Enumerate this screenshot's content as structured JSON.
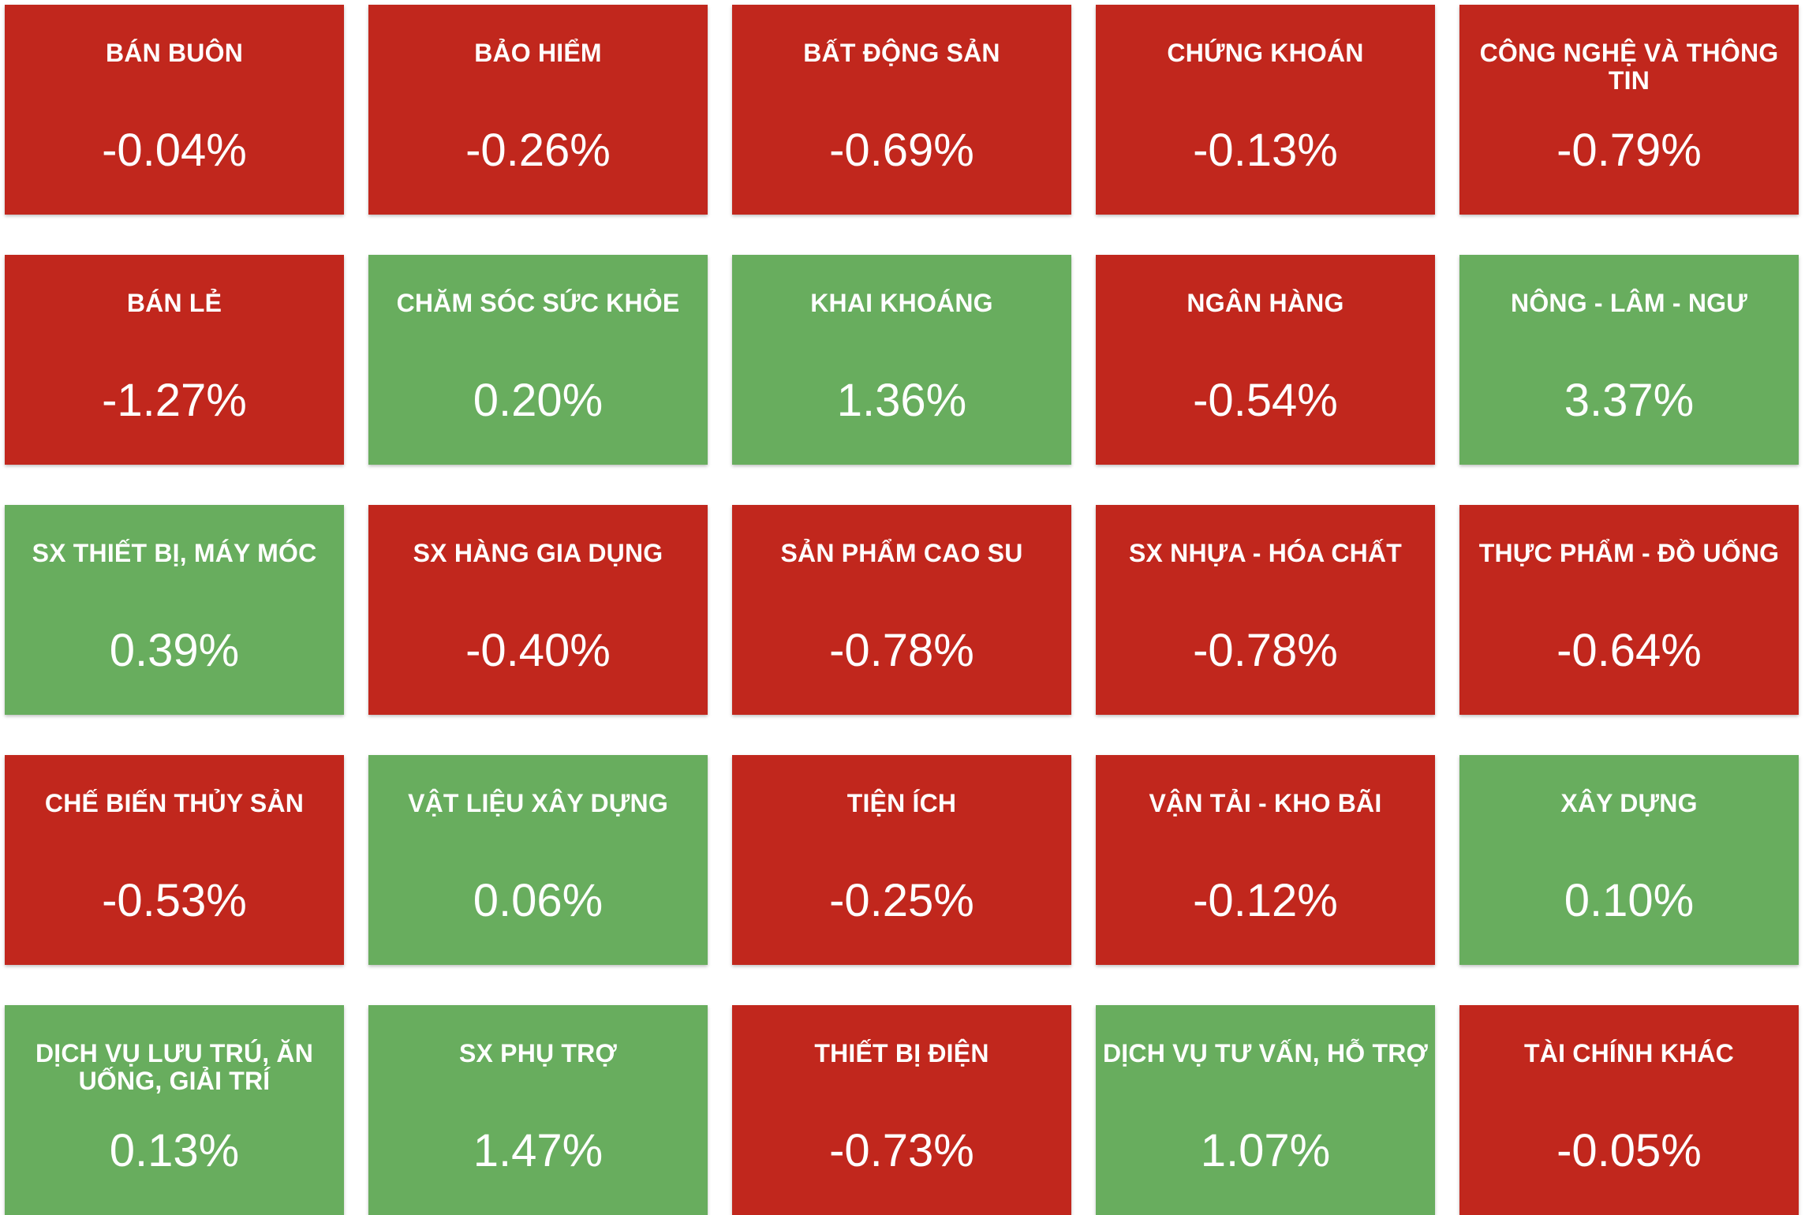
{
  "colors": {
    "down": "#c1271d",
    "up": "#68ad5e",
    "text": "#ffffff"
  },
  "sectors": [
    {
      "name": "BÁN BUÔN",
      "change": "-0.04%",
      "trend": "down"
    },
    {
      "name": "BẢO HIỂM",
      "change": "-0.26%",
      "trend": "down"
    },
    {
      "name": "BẤT ĐỘNG SẢN",
      "change": "-0.69%",
      "trend": "down"
    },
    {
      "name": "CHỨNG KHOÁN",
      "change": "-0.13%",
      "trend": "down"
    },
    {
      "name": "CÔNG NGHỆ VÀ THÔNG TIN",
      "change": "-0.79%",
      "trend": "down"
    },
    {
      "name": "BÁN LẺ",
      "change": "-1.27%",
      "trend": "down"
    },
    {
      "name": "CHĂM SÓC SỨC KHỎE",
      "change": "0.20%",
      "trend": "up"
    },
    {
      "name": "KHAI KHOÁNG",
      "change": "1.36%",
      "trend": "up"
    },
    {
      "name": "NGÂN HÀNG",
      "change": "-0.54%",
      "trend": "down"
    },
    {
      "name": "NÔNG - LÂM - NGƯ",
      "change": "3.37%",
      "trend": "up"
    },
    {
      "name": "SX THIẾT BỊ, MÁY MÓC",
      "change": "0.39%",
      "trend": "up"
    },
    {
      "name": "SX HÀNG GIA DỤNG",
      "change": "-0.40%",
      "trend": "down"
    },
    {
      "name": "SẢN PHẨM CAO SU",
      "change": "-0.78%",
      "trend": "down"
    },
    {
      "name": "SX NHỰA - HÓA CHẤT",
      "change": "-0.78%",
      "trend": "down"
    },
    {
      "name": "THỰC PHẨM - ĐỒ UỐNG",
      "change": "-0.64%",
      "trend": "down"
    },
    {
      "name": "CHẾ BIẾN THỦY SẢN",
      "change": "-0.53%",
      "trend": "down"
    },
    {
      "name": "VẬT LIỆU XÂY DỰNG",
      "change": "0.06%",
      "trend": "up"
    },
    {
      "name": "TIỆN ÍCH",
      "change": "-0.25%",
      "trend": "down"
    },
    {
      "name": "VẬN TẢI - KHO BÃI",
      "change": "-0.12%",
      "trend": "down"
    },
    {
      "name": "XÂY DỰNG",
      "change": "0.10%",
      "trend": "up"
    },
    {
      "name": "DỊCH VỤ LƯU TRÚ, ĂN UỐNG, GIẢI TRÍ",
      "change": "0.13%",
      "trend": "up"
    },
    {
      "name": "SX PHỤ TRỢ",
      "change": "1.47%",
      "trend": "up"
    },
    {
      "name": "THIẾT BỊ ĐIỆN",
      "change": "-0.73%",
      "trend": "down"
    },
    {
      "name": "DỊCH VỤ TƯ VẤN, HỖ TRỢ",
      "change": "1.07%",
      "trend": "up"
    },
    {
      "name": "TÀI CHÍNH KHÁC",
      "change": "-0.05%",
      "trend": "down"
    }
  ]
}
